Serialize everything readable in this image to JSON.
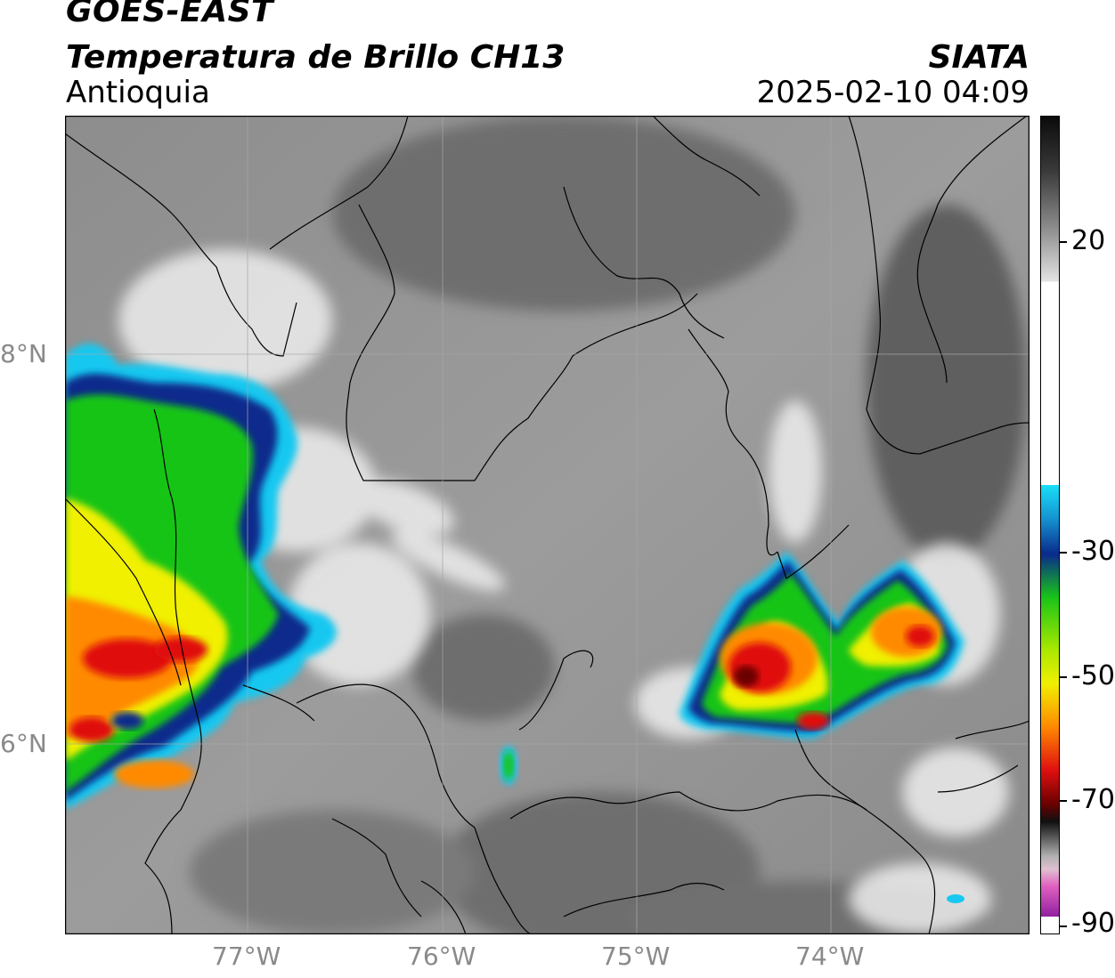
{
  "header": {
    "satellite": "GOES-EAST",
    "product": "Temperatura de Brillo CH13",
    "region": "Antioquia",
    "organization": "SIATA",
    "timestamp": "2025-02-10 04:09"
  },
  "map": {
    "lat_labels": [
      "8°N",
      "6°N"
    ],
    "lon_labels": [
      "77°W",
      "76°W",
      "75°W",
      "74°W"
    ]
  },
  "colorbar": {
    "tick_labels": [
      "20",
      "-30",
      "-50",
      "-70",
      "-90"
    ],
    "colors": {
      "warm_gray": "#7a7a7a",
      "white": "#f2f2f2",
      "cyan": "#19c8f0",
      "blue": "#0a2a8c",
      "green": "#18c418",
      "yellow": "#f0f000",
      "orange": "#ff8a00",
      "red": "#e01010",
      "dark_red": "#6a0000",
      "magenta": "#c040c0"
    }
  }
}
